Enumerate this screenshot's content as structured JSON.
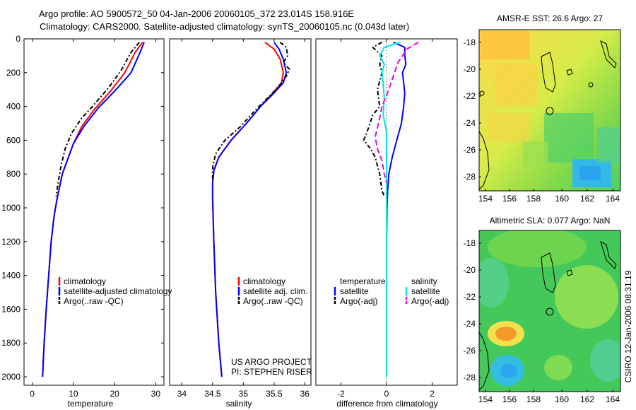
{
  "header": {
    "line1": "Argo profile: AO 5900572_50 04-Jan-2006 20060105_372 23.014S 158.916E",
    "line2": "Climatology: CARS2000. Satellite-adjusted climatology: synTS_20060105.nc (0.043d later)"
  },
  "side_stamp": "CSIRO 12-Jan-2006 08:31:19",
  "colors": {
    "climatology": "#ff0000",
    "satellite": "#0000ff",
    "argo": "#000000",
    "salinity_satellite": "#00e5e5",
    "salinity_argo": "#ee00ee"
  },
  "project": {
    "line1": "US ARGO PROJECT",
    "line2": "PI: STEPHEN RISER"
  },
  "chart_data": [
    {
      "id": "temperature",
      "type": "line",
      "xlabel": "temperature",
      "ylabel": "",
      "xlim": [
        -2,
        32
      ],
      "ylim": [
        2050,
        0
      ],
      "xticks": [
        0,
        10,
        20,
        30
      ],
      "yticks": [
        0,
        200,
        400,
        600,
        800,
        1000,
        1200,
        1400,
        1600,
        1800,
        2000
      ],
      "legend": [
        "climatology",
        "satellite-adjusted climatology",
        "Argo(..raw -QC)"
      ],
      "series": [
        {
          "name": "climatology",
          "color": "#ff0000",
          "dash": "",
          "points": [
            [
              26.8,
              20
            ],
            [
              25,
              80
            ],
            [
              22.5,
              200
            ],
            [
              19,
              310
            ],
            [
              15,
              420
            ],
            [
              12,
              520
            ],
            [
              10,
              620
            ],
            [
              8.5,
              720
            ],
            [
              7.3,
              800
            ],
            [
              6.6,
              880
            ],
            [
              6,
              950
            ],
            [
              5.3,
              1050
            ],
            [
              4.6,
              1200
            ],
            [
              4,
              1400
            ],
            [
              3.4,
              1600
            ],
            [
              2.9,
              1800
            ],
            [
              2.5,
              2000
            ]
          ]
        },
        {
          "name": "satellite-adjusted climatology",
          "color": "#0000ff",
          "dash": "",
          "points": [
            [
              27.2,
              20
            ],
            [
              26.2,
              80
            ],
            [
              24,
              200
            ],
            [
              20,
              310
            ],
            [
              16,
              410
            ],
            [
              12.5,
              520
            ],
            [
              10,
              620
            ],
            [
              8.5,
              720
            ],
            [
              7.3,
              800
            ],
            [
              6.6,
              880
            ],
            [
              6,
              950
            ],
            [
              5.3,
              1050
            ],
            [
              4.6,
              1200
            ],
            [
              4,
              1400
            ],
            [
              3.4,
              1600
            ],
            [
              2.9,
              1800
            ],
            [
              2.5,
              2000
            ]
          ]
        },
        {
          "name": "Argo(..raw -QC)",
          "color": "#000000",
          "dash": "6,3,2,3",
          "points": [
            [
              26,
              20
            ],
            [
              24,
              80
            ],
            [
              21.5,
              190
            ],
            [
              18.5,
              290
            ],
            [
              15,
              390
            ],
            [
              12,
              470
            ],
            [
              9.5,
              560
            ],
            [
              8,
              650
            ],
            [
              7,
              750
            ],
            [
              6.3,
              850
            ],
            [
              5.8,
              930
            ]
          ]
        }
      ]
    },
    {
      "id": "salinity",
      "type": "line",
      "xlabel": "salinity",
      "ylabel": "",
      "xlim": [
        33.8,
        36.1
      ],
      "ylim": [
        2050,
        0
      ],
      "xticks": [
        34,
        34.5,
        35,
        35.5,
        36
      ],
      "yticks": [],
      "legend": [
        "climatology",
        "satellite adj. clim.",
        "Argo(..raw -QC)"
      ],
      "series": [
        {
          "name": "climatology",
          "color": "#ff0000",
          "dash": "",
          "points": [
            [
              35.35,
              20
            ],
            [
              35.5,
              60
            ],
            [
              35.6,
              120
            ],
            [
              35.65,
              200
            ],
            [
              35.62,
              260
            ],
            [
              35.48,
              320
            ],
            [
              35.28,
              400
            ],
            [
              35.05,
              500
            ],
            [
              34.8,
              600
            ],
            [
              34.6,
              700
            ],
            [
              34.52,
              780
            ],
            [
              34.5,
              850
            ],
            [
              34.5,
              950
            ],
            [
              34.52,
              1200
            ],
            [
              34.55,
              1500
            ],
            [
              34.6,
              1800
            ],
            [
              34.65,
              2000
            ]
          ]
        },
        {
          "name": "satellite adj. clim.",
          "color": "#0000ff",
          "dash": "",
          "points": [
            [
              35.5,
              20
            ],
            [
              35.58,
              60
            ],
            [
              35.65,
              120
            ],
            [
              35.7,
              200
            ],
            [
              35.65,
              260
            ],
            [
              35.5,
              320
            ],
            [
              35.28,
              400
            ],
            [
              35.05,
              500
            ],
            [
              34.8,
              600
            ],
            [
              34.6,
              700
            ],
            [
              34.52,
              780
            ],
            [
              34.5,
              850
            ],
            [
              34.5,
              950
            ],
            [
              34.52,
              1200
            ],
            [
              34.55,
              1500
            ],
            [
              34.6,
              1800
            ],
            [
              34.65,
              2000
            ]
          ]
        },
        {
          "name": "Argo(..raw -QC)",
          "color": "#000000",
          "dash": "6,3,2,3",
          "points": [
            [
              35.6,
              20
            ],
            [
              35.7,
              50
            ],
            [
              35.72,
              100
            ],
            [
              35.65,
              140
            ],
            [
              35.75,
              180
            ],
            [
              35.7,
              220
            ],
            [
              35.6,
              270
            ],
            [
              35.45,
              330
            ],
            [
              35.2,
              420
            ],
            [
              34.95,
              520
            ],
            [
              34.7,
              600
            ],
            [
              34.55,
              680
            ],
            [
              34.5,
              760
            ],
            [
              34.5,
              830
            ]
          ]
        }
      ]
    },
    {
      "id": "difference",
      "type": "line",
      "xlabel": "difference from climatology",
      "ylabel": "",
      "xlim": [
        -3.1,
        3.1
      ],
      "ylim": [
        2050,
        0
      ],
      "xticks": [
        -2,
        0,
        2
      ],
      "yticks": [],
      "legend_left_title": "temperature",
      "legend_right_title": "salinity",
      "legend_left": [
        "satellite",
        "Argo(-adj)"
      ],
      "legend_right": [
        "satellite",
        "Argo(-adj)"
      ],
      "series": [
        {
          "name": "temperature satellite",
          "color": "#0000ff",
          "dash": "",
          "points": [
            [
              0.3,
              20
            ],
            [
              0.8,
              50
            ],
            [
              0.8,
              100
            ],
            [
              0.85,
              150
            ],
            [
              0.7,
              200
            ],
            [
              0.75,
              260
            ],
            [
              0.8,
              320
            ],
            [
              0.75,
              400
            ],
            [
              0.65,
              500
            ],
            [
              0.45,
              600
            ],
            [
              0.25,
              700
            ],
            [
              0.1,
              800
            ],
            [
              0.05,
              900
            ],
            [
              0.02,
              1000
            ],
            [
              0,
              1200
            ],
            [
              0,
              2000
            ]
          ]
        },
        {
          "name": "temperature Argo(-adj)",
          "color": "#000000",
          "dash": "6,3,2,3",
          "points": [
            [
              -0.2,
              20
            ],
            [
              -0.6,
              50
            ],
            [
              -0.2,
              100
            ],
            [
              -0.3,
              150
            ],
            [
              -0.2,
              200
            ],
            [
              -0.4,
              300
            ],
            [
              -0.3,
              400
            ],
            [
              -0.6,
              450
            ],
            [
              -0.8,
              530
            ],
            [
              -1,
              600
            ],
            [
              -0.7,
              650
            ],
            [
              -0.5,
              700
            ],
            [
              -0.3,
              800
            ],
            [
              -0.2,
              900
            ],
            [
              -0.1,
              930
            ]
          ]
        },
        {
          "name": "salinity satellite",
          "color": "#00e5e5",
          "dash": "",
          "points": [
            [
              0.6,
              20
            ],
            [
              -0.1,
              50
            ],
            [
              -0.3,
              100
            ],
            [
              -0.1,
              150
            ],
            [
              -0.2,
              200
            ],
            [
              -0.15,
              260
            ],
            [
              -0.1,
              350
            ],
            [
              -0.15,
              450
            ],
            [
              0,
              550
            ],
            [
              0,
              700
            ],
            [
              0,
              1000
            ],
            [
              0,
              2000
            ]
          ]
        },
        {
          "name": "salinity Argo(-adj)",
          "color": "#ee00ee",
          "dash": "8,4",
          "points": [
            [
              1.4,
              20
            ],
            [
              0.9,
              60
            ],
            [
              0.5,
              140
            ],
            [
              0.3,
              220
            ],
            [
              0.1,
              300
            ],
            [
              -0.2,
              400
            ],
            [
              -0.35,
              500
            ],
            [
              -0.5,
              580
            ],
            [
              -0.4,
              650
            ],
            [
              -0.2,
              720
            ],
            [
              -0.1,
              800
            ],
            [
              0,
              850
            ]
          ]
        }
      ]
    }
  ],
  "maps": [
    {
      "id": "sst",
      "title": "AMSR-E SST: 26.6 Argo: 27",
      "xticks": [
        "154",
        "156",
        "158",
        "160",
        "162",
        "164"
      ],
      "yticks": [
        "-18",
        "-20",
        "-22",
        "-24",
        "-26",
        "-28"
      ]
    },
    {
      "id": "sla",
      "title": "Altimetric SLA: 0.077 Argo: NaN",
      "xticks": [
        "154",
        "156",
        "158",
        "160",
        "162",
        "164"
      ],
      "yticks": [
        "-18",
        "-20",
        "-22",
        "-24",
        "-26",
        "-28"
      ]
    }
  ]
}
